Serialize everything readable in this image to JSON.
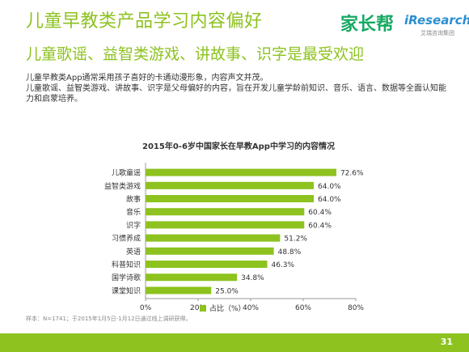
{
  "header": {
    "title": "儿童早教类产品学习内容偏好",
    "subtitle": "儿童歌谣、益智类游戏、讲故事、识字是最受欢迎",
    "logo_brand": "家长帮",
    "logo_ir": "iResearch",
    "logo_ir_sub": "艾瑞咨询集团"
  },
  "body": {
    "para1": "儿童早教类App通常采用孩子喜好的卡通动漫形象，内容声文并茂。",
    "para2": "儿童歌谣、益智类游戏、讲故事、识字是父母偏好的内容，旨在开发儿童学龄前知识、音乐、语言、数据等全面认知能力和启蒙培养。"
  },
  "chart_data": {
    "type": "bar",
    "orientation": "horizontal",
    "title": "2015年0-6岁中国家长在早教App中学习的内容情况",
    "categories": [
      "儿歌童谣",
      "益智类游戏",
      "故事",
      "音乐",
      "识字",
      "习惯养成",
      "英语",
      "科普知识",
      "国学诗歌",
      "课堂知识"
    ],
    "values": [
      72.6,
      64.0,
      64.0,
      60.4,
      60.4,
      51.2,
      48.8,
      46.3,
      34.8,
      25.0
    ],
    "value_labels": [
      "72.6%",
      "64.0%",
      "64.0%",
      "60.4%",
      "60.4%",
      "51.2%",
      "48.8%",
      "46.3%",
      "34.8%",
      "25.0%"
    ],
    "xlim": [
      0,
      80
    ],
    "ticks": [
      0,
      20,
      40,
      60,
      80
    ],
    "tick_labels": [
      "0%",
      "20%",
      "40%",
      "60%",
      "80%"
    ],
    "legend": "占比（%）",
    "legend_position": "bottom",
    "bar_color": "#8dc21f",
    "grid": false
  },
  "footer": {
    "note": "样本：N=1741；于2015年1月5日-1月12日通过线上调研获得。",
    "page": "31"
  }
}
